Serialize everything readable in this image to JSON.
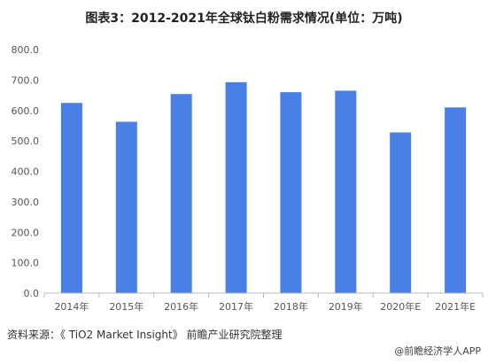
{
  "title": "图表3：2012-2021年全球钛白粉需求情况(单位：万吨)",
  "source": "资料来源：《 TiO2 Market Insight》 前瞻产业研究院整理",
  "brand": "@前瞻经济学人APP",
  "colors": {
    "bar": "#4A7FE6",
    "axis": "#b8b8b8",
    "text": "#555555"
  },
  "chart_data": {
    "type": "bar",
    "title": "图表3：2012-2021年全球钛白粉需求情况(单位：万吨)",
    "xlabel": "",
    "ylabel": "",
    "categories": [
      "2014年",
      "2015年",
      "2016年",
      "2017年",
      "2018年",
      "2019年",
      "2020年E",
      "2021年E"
    ],
    "values": [
      625,
      563,
      654,
      693,
      660,
      665,
      528,
      610
    ],
    "ylim": [
      0,
      800
    ],
    "yticks": [
      "0.0",
      "100.0",
      "200.0",
      "300.0",
      "400.0",
      "500.0",
      "600.0",
      "700.0",
      "800.0"
    ],
    "grid": false,
    "legend": "none"
  }
}
